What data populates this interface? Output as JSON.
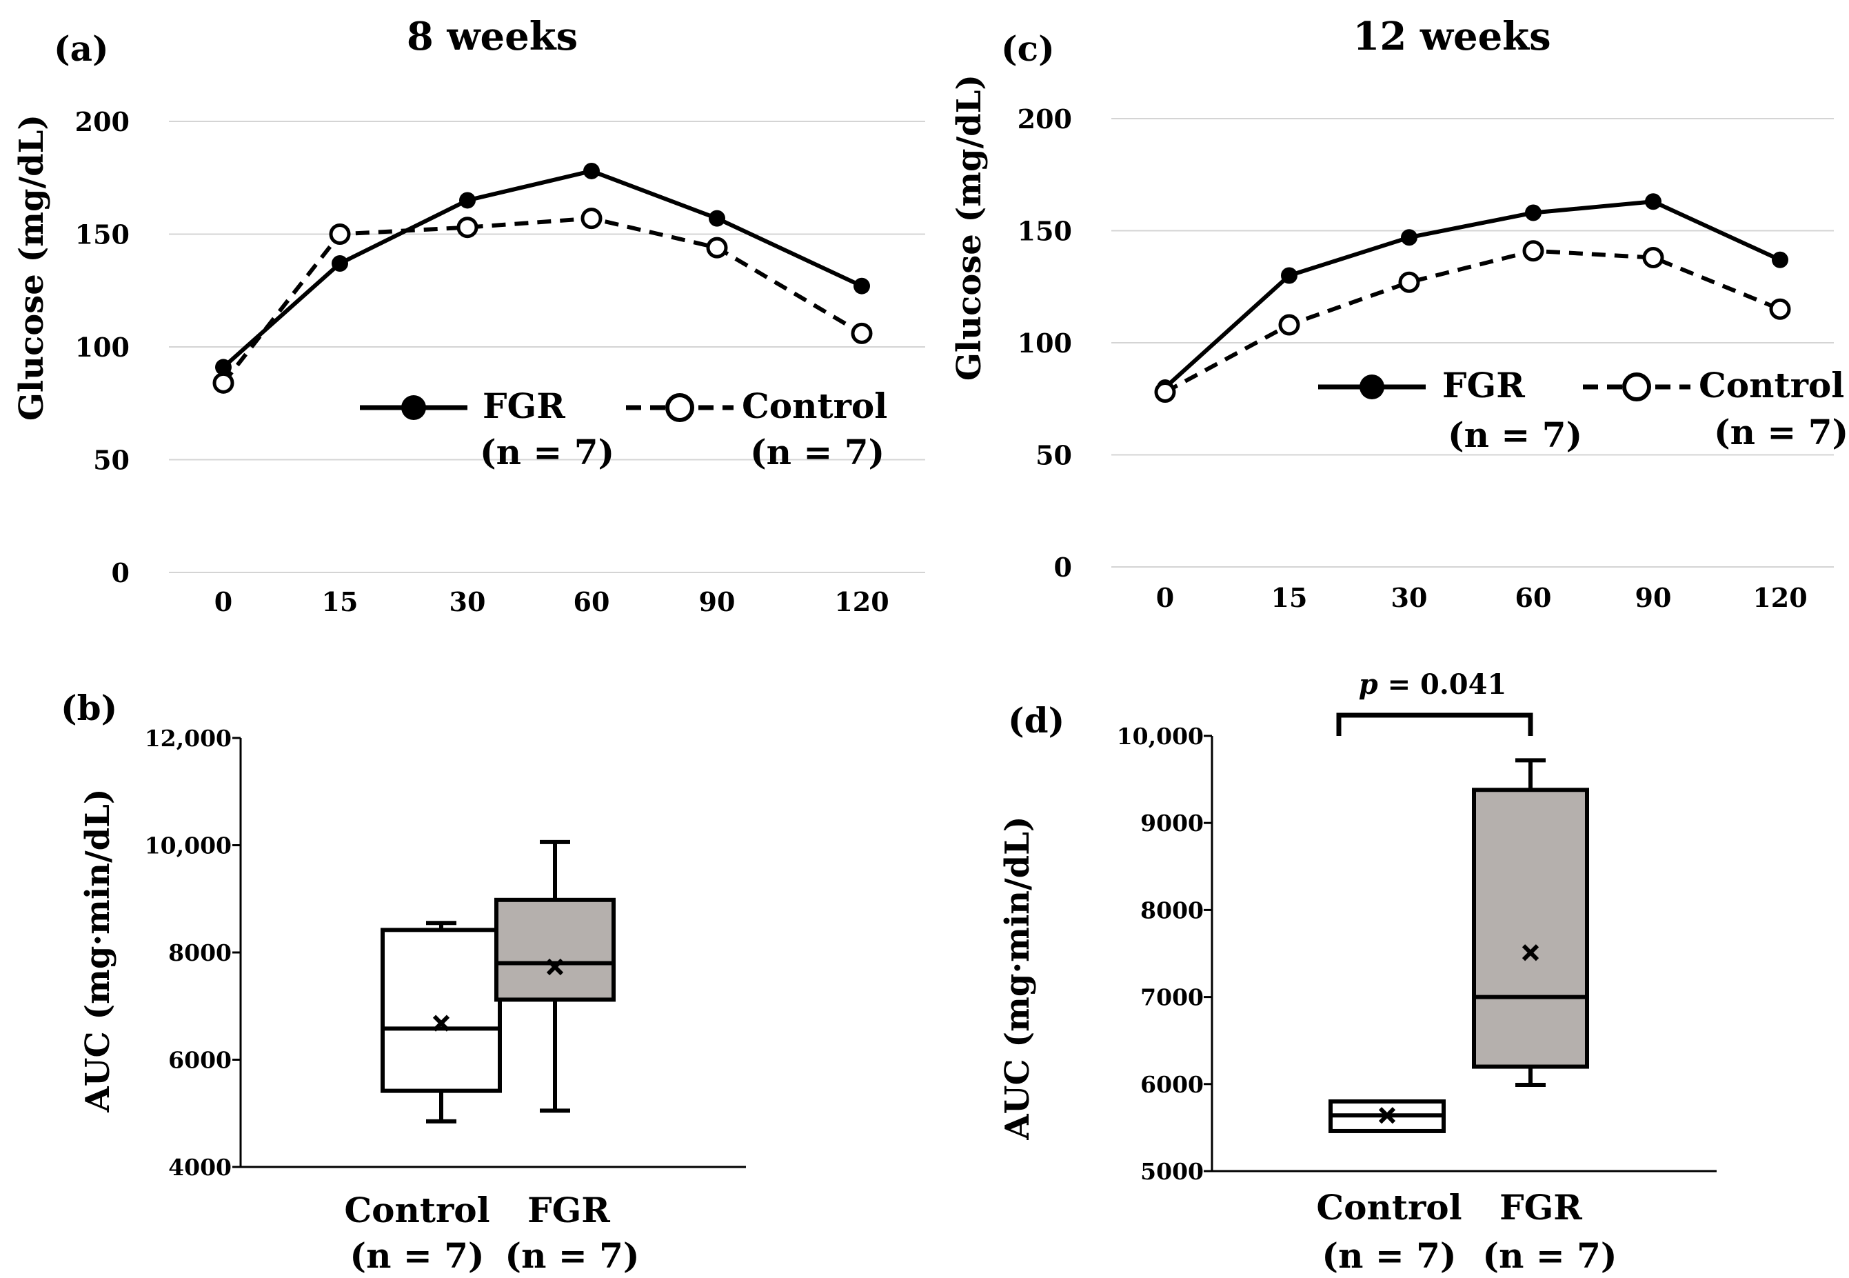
{
  "chart_data": [
    {
      "id": "a",
      "type": "line",
      "panel_label": "(a)",
      "title": "8 weeks",
      "xlabel": "",
      "ylabel": "Glucose (mg/dL)",
      "ylim": [
        0,
        200
      ],
      "yticks": [
        "0",
        "50",
        "100",
        "150",
        "200"
      ],
      "categories": [
        "0",
        "15",
        "30",
        "60",
        "90",
        "120"
      ],
      "grid": true,
      "series": [
        {
          "name": "FGR",
          "n_label": "(n = 7)",
          "style": "solid",
          "marker": "filled",
          "values": [
            91,
            137,
            165,
            178,
            157,
            127
          ]
        },
        {
          "name": "Control",
          "n_label": "(n = 7)",
          "style": "dashed",
          "marker": "open",
          "values": [
            84,
            150,
            153,
            157,
            144,
            106
          ]
        }
      ]
    },
    {
      "id": "b",
      "type": "box",
      "panel_label": "(b)",
      "title": "",
      "ylabel": "AUC (mg·min/dL)",
      "ylim": [
        4000,
        12000
      ],
      "yticks": [
        "4000",
        "6000",
        "8000",
        "10,000",
        "12,000"
      ],
      "groups": [
        {
          "name": "Control",
          "n_label": "(n = 7)",
          "color": "#ffffff",
          "min": 4850,
          "q1": 5420,
          "median": 6580,
          "mean": 6680,
          "q3": 8420,
          "max": 8550
        },
        {
          "name": "FGR",
          "n_label": "(n = 7)",
          "color": "#b5b0ad",
          "min": 5050,
          "q1": 7120,
          "median": 7800,
          "mean": 7730,
          "q3": 8980,
          "max": 10060
        }
      ]
    },
    {
      "id": "c",
      "type": "line",
      "panel_label": "(c)",
      "title": "12 weeks",
      "xlabel": "",
      "ylabel": "Glucose (mg/dL)",
      "ylim": [
        0,
        200
      ],
      "yticks": [
        "0",
        "50",
        "100",
        "150",
        "200"
      ],
      "categories": [
        "0",
        "15",
        "30",
        "60",
        "90",
        "120"
      ],
      "grid": true,
      "series": [
        {
          "name": "FGR",
          "n_label": "(n = 7)",
          "style": "solid",
          "marker": "filled",
          "values": [
            80,
            130,
            147,
            158,
            163,
            137
          ]
        },
        {
          "name": "Control",
          "n_label": "(n = 7)",
          "style": "dashed",
          "marker": "open",
          "values": [
            78,
            108,
            127,
            141,
            138,
            115
          ]
        }
      ]
    },
    {
      "id": "d",
      "type": "box",
      "panel_label": "(d)",
      "title": "",
      "ylabel": "AUC (mg·min/dL)",
      "ylim": [
        5000,
        10000
      ],
      "yticks": [
        "5000",
        "6000",
        "7000",
        "8000",
        "9000",
        "10,000"
      ],
      "annotation": {
        "p_symbol": "p",
        "p_text": " = 0.041"
      },
      "groups": [
        {
          "name": "Control",
          "n_label": "(n = 7)",
          "color": "#ffffff",
          "min": 5460,
          "q1": 5460,
          "median": 5640,
          "mean": 5640,
          "q3": 5800,
          "max": 5800
        },
        {
          "name": "FGR",
          "n_label": "(n = 7)",
          "color": "#b5b0ad",
          "min": 5990,
          "q1": 6200,
          "median": 7000,
          "mean": 7510,
          "q3": 9380,
          "max": 9720
        }
      ]
    }
  ]
}
